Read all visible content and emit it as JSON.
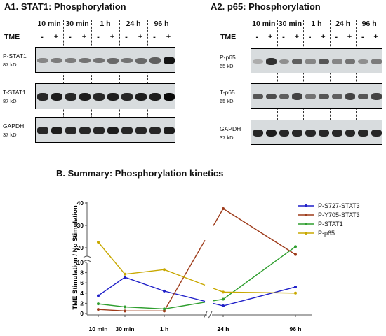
{
  "panel_a1": {
    "title": "A1. STAT1: Phosphorylation",
    "timepoints": [
      "10 min",
      "30 min",
      "1 h",
      "24 h",
      "96 h"
    ],
    "tme_label": "TME",
    "signs": [
      "-",
      "+",
      "-",
      "+",
      "-",
      "+",
      "-",
      "+",
      "-",
      "+"
    ],
    "blots": [
      {
        "name": "P-STAT1",
        "kd": "87 kD"
      },
      {
        "name": "T-STAT1",
        "kd": "87 kD"
      },
      {
        "name": "GAPDH",
        "kd": "37 kD"
      }
    ]
  },
  "panel_a2": {
    "title": "A2. p65: Phosphorylation",
    "timepoints": [
      "10 min",
      "30 min",
      "1 h",
      "24 h",
      "96 h"
    ],
    "tme_label": "TME",
    "signs": [
      "-",
      "+",
      "-",
      "+",
      "-",
      "+",
      "-",
      "+",
      "-",
      "+"
    ],
    "blots": [
      {
        "name": "P-p65",
        "kd": "65 kD"
      },
      {
        "name": "T-p65",
        "kd": "65 kD"
      },
      {
        "name": "GAPDH",
        "kd": "37 kD"
      }
    ]
  },
  "panel_b": {
    "title": "B. Summary: Phosphorylation kinetics"
  },
  "chart_data": {
    "type": "line",
    "ylabel": "TME Stimulation / No Stimulation",
    "categories": [
      "10 min",
      "30 min",
      "1 h",
      "24 h",
      "96 h"
    ],
    "y_axis_break": true,
    "ylim_lower": [
      0,
      10
    ],
    "ylim_upper": [
      15,
      40
    ],
    "yticks_lower": [
      0,
      2,
      4,
      6,
      8,
      10
    ],
    "yticks_upper": [
      20,
      30,
      40
    ],
    "x_axis_break_between": [
      "1 h",
      "24 h"
    ],
    "legend_position": "top-right",
    "series": [
      {
        "name": "P-S727-STAT3",
        "color": "#1f1fc8",
        "values": [
          3.5,
          7.1,
          4.4,
          1.5,
          5.2
        ]
      },
      {
        "name": "P-Y705-STAT3",
        "color": "#9e3b1a",
        "values": [
          0.8,
          0.5,
          0.5,
          37.5,
          17.0
        ]
      },
      {
        "name": "P-STAT1",
        "color": "#2e9e2e",
        "values": [
          1.9,
          1.3,
          0.9,
          2.8,
          20.5
        ]
      },
      {
        "name": "P-p65",
        "color": "#c8a800",
        "values": [
          22.5,
          7.7,
          8.6,
          4.2,
          4.0
        ]
      }
    ]
  }
}
